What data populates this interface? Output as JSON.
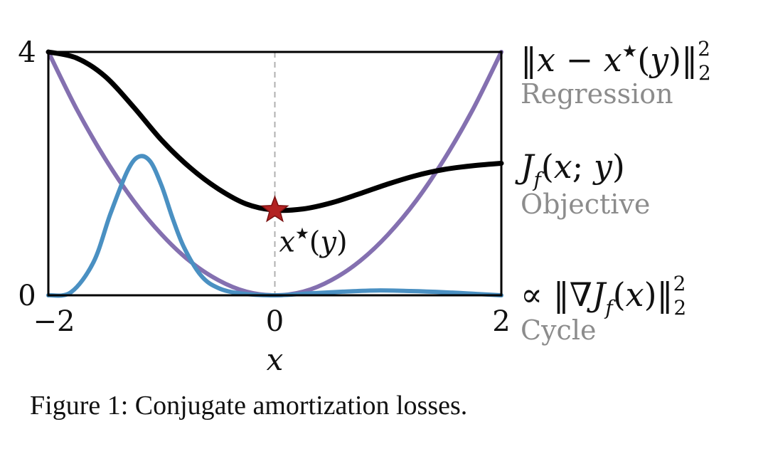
{
  "caption": "Figure 1: Conjugate amortization losses.",
  "chart_data": {
    "type": "line",
    "xlim": [
      -2,
      2
    ],
    "ylim": [
      0,
      4
    ],
    "xlabel": "x",
    "ylabel": "",
    "x_ticks": [
      "-2",
      "0",
      "2"
    ],
    "y_ticks": [
      "0",
      "4"
    ],
    "grid": false,
    "vline_x": 0,
    "optimum": {
      "label": "x★(y)",
      "x": 0,
      "y": 1.4,
      "color": "#b22222"
    },
    "series": [
      {
        "key": "objective",
        "label_math": "J_f(x; y)",
        "label_name": "Objective",
        "color": "#000000",
        "x": [
          -2.0,
          -1.75,
          -1.5,
          -1.25,
          -1.0,
          -0.75,
          -0.5,
          -0.25,
          0.0,
          0.25,
          0.5,
          0.75,
          1.0,
          1.25,
          1.5,
          1.75,
          2.0
        ],
        "y": [
          4.0,
          3.9,
          3.6,
          3.1,
          2.55,
          2.1,
          1.75,
          1.5,
          1.4,
          1.42,
          1.52,
          1.67,
          1.83,
          1.97,
          2.07,
          2.13,
          2.17
        ]
      },
      {
        "key": "regression",
        "label_math": "‖x − x★(y)‖²₂",
        "label_name": "Regression",
        "color": "#8470b0",
        "x": [
          -2.0,
          -1.75,
          -1.5,
          -1.25,
          -1.0,
          -0.75,
          -0.5,
          -0.25,
          0.0,
          0.25,
          0.5,
          0.75,
          1.0,
          1.25,
          1.5,
          1.75,
          2.0
        ],
        "y": [
          4.0,
          3.06,
          2.25,
          1.56,
          1.0,
          0.56,
          0.25,
          0.06,
          0.0,
          0.06,
          0.25,
          0.56,
          1.0,
          1.56,
          2.25,
          3.06,
          4.0
        ]
      },
      {
        "key": "cycle",
        "label_math": "∝ ‖∇J_f(x)‖²₂",
        "label_name": "Cycle",
        "color": "#4a90c2",
        "x": [
          -2.0,
          -1.8,
          -1.6,
          -1.45,
          -1.3,
          -1.2,
          -1.1,
          -1.0,
          -0.9,
          -0.8,
          -0.65,
          -0.5,
          -0.3,
          0.0,
          0.3,
          0.6,
          0.9,
          1.2,
          1.5,
          1.8,
          2.0
        ],
        "y": [
          0.0,
          0.05,
          0.55,
          1.35,
          2.05,
          2.28,
          2.2,
          1.8,
          1.25,
          0.78,
          0.32,
          0.12,
          0.03,
          0.0,
          0.03,
          0.06,
          0.08,
          0.07,
          0.05,
          0.02,
          0.0
        ]
      }
    ]
  }
}
